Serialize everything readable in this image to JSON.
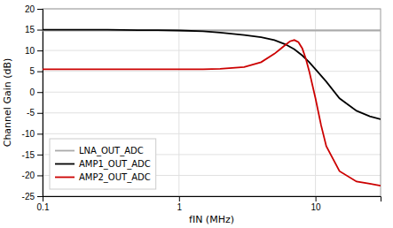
{
  "chart_data": {
    "type": "line",
    "xlabel": "fIN (MHz)",
    "ylabel": "Channel Gain (dB)",
    "log": "x",
    "xlim": [
      0.1,
      30
    ],
    "ylim": [
      -25,
      20
    ],
    "xticks": [
      0.1,
      1,
      10
    ],
    "yticks": [
      -25,
      -20,
      -15,
      -10,
      -5,
      0,
      5,
      10,
      15,
      20
    ],
    "grid": true,
    "legend": "lower left",
    "series": [
      {
        "name": "LNA_OUT_ADC",
        "color": "#aaaaaa",
        "x": [
          0.1,
          30.0
        ],
        "values": [
          14.8,
          14.8
        ]
      },
      {
        "name": "AMP1_OUT_ADC",
        "color": "#000000",
        "x": [
          0.1,
          0.2,
          0.3,
          0.5,
          0.7,
          1.0,
          1.5,
          2.0,
          3.0,
          4.0,
          5.0,
          6.0,
          7.0,
          8.0,
          9.0,
          10.0,
          12.0,
          15.0,
          20.0,
          25.0,
          30.0
        ],
        "values": [
          15.0,
          15.0,
          15.0,
          14.9,
          14.9,
          14.8,
          14.6,
          14.3,
          13.7,
          13.2,
          12.5,
          11.5,
          10.3,
          8.8,
          7.2,
          5.5,
          2.5,
          -1.5,
          -4.5,
          -5.8,
          -6.5
        ]
      },
      {
        "name": "AMP2_OUT_ADC",
        "color": "#cc0000",
        "x": [
          0.1,
          0.2,
          0.3,
          0.5,
          0.7,
          1.0,
          1.5,
          2.0,
          3.0,
          4.0,
          5.0,
          5.5,
          6.0,
          6.5,
          7.0,
          7.5,
          8.0,
          8.5,
          9.0,
          10.0,
          11.0,
          12.0,
          15.0,
          20.0,
          25.0,
          30.0
        ],
        "values": [
          5.5,
          5.5,
          5.5,
          5.5,
          5.5,
          5.5,
          5.5,
          5.6,
          6.0,
          7.2,
          9.2,
          10.3,
          11.3,
          12.2,
          12.5,
          12.0,
          10.5,
          8.0,
          5.0,
          -1.5,
          -8.0,
          -13.0,
          -19.0,
          -21.5,
          -22.0,
          -22.5
        ]
      }
    ]
  }
}
